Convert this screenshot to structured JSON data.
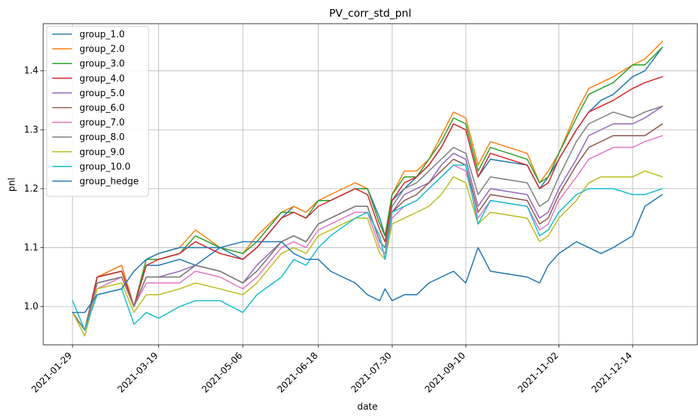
{
  "chart_data": {
    "type": "line",
    "title": "PV_corr_std_pnl",
    "xlabel": "date",
    "ylabel": "pnl",
    "x_tick_labels": [
      "2021-01-29",
      "2021-03-19",
      "2021-05-06",
      "2021-06-18",
      "2021-07-30",
      "2021-09-10",
      "2021-11-02",
      "2021-12-14"
    ],
    "y_tick_labels": [
      "1.0",
      "1.1",
      "1.2",
      "1.3",
      "1.4"
    ],
    "y_ticks": [
      1.0,
      1.1,
      1.2,
      1.3,
      1.4
    ],
    "ylim": [
      0.935,
      1.48
    ],
    "grid": true,
    "legend_position": "top-left",
    "x": [
      "2021-01-29",
      "2021-02-05",
      "2021-02-12",
      "2021-02-26",
      "2021-03-05",
      "2021-03-12",
      "2021-03-19",
      "2021-03-31",
      "2021-04-09",
      "2021-04-23",
      "2021-05-06",
      "2021-05-14",
      "2021-05-28",
      "2021-06-04",
      "2021-06-11",
      "2021-06-18",
      "2021-06-25",
      "2021-07-09",
      "2021-07-16",
      "2021-07-23",
      "2021-07-26",
      "2021-07-30",
      "2021-08-06",
      "2021-08-13",
      "2021-08-20",
      "2021-08-27",
      "2021-09-03",
      "2021-09-10",
      "2021-09-17",
      "2021-09-24",
      "2021-10-15",
      "2021-10-22",
      "2021-10-27",
      "2021-11-02",
      "2021-11-12",
      "2021-11-19",
      "2021-11-26",
      "2021-12-03",
      "2021-12-14",
      "2021-12-21",
      "2021-12-31"
    ],
    "series": [
      {
        "name": "group_1.0",
        "color": "#1f77b4",
        "values": [
          0.99,
          0.96,
          1.05,
          1.07,
          1.0,
          1.07,
          1.07,
          1.08,
          1.07,
          1.1,
          1.08,
          1.1,
          1.15,
          1.17,
          1.16,
          1.18,
          1.18,
          1.2,
          1.2,
          1.15,
          1.12,
          1.18,
          1.2,
          1.22,
          1.24,
          1.27,
          1.31,
          1.3,
          1.22,
          1.25,
          1.24,
          1.2,
          1.22,
          1.25,
          1.3,
          1.33,
          1.35,
          1.36,
          1.39,
          1.4,
          1.44
        ]
      },
      {
        "name": "group_2.0",
        "color": "#ff7f0e",
        "values": [
          0.99,
          0.96,
          1.05,
          1.07,
          1.0,
          1.08,
          1.09,
          1.1,
          1.13,
          1.1,
          1.09,
          1.12,
          1.16,
          1.17,
          1.16,
          1.18,
          1.19,
          1.21,
          1.2,
          1.14,
          1.12,
          1.19,
          1.23,
          1.23,
          1.25,
          1.29,
          1.33,
          1.32,
          1.24,
          1.28,
          1.26,
          1.21,
          1.23,
          1.26,
          1.33,
          1.37,
          1.38,
          1.39,
          1.41,
          1.42,
          1.45
        ]
      },
      {
        "name": "group_3.0",
        "color": "#2ca02c",
        "values": [
          0.99,
          0.96,
          1.05,
          1.06,
          1.0,
          1.08,
          1.08,
          1.09,
          1.12,
          1.1,
          1.09,
          1.11,
          1.16,
          1.16,
          1.15,
          1.18,
          1.18,
          1.2,
          1.2,
          1.14,
          1.12,
          1.19,
          1.22,
          1.22,
          1.25,
          1.28,
          1.32,
          1.31,
          1.23,
          1.27,
          1.25,
          1.21,
          1.22,
          1.26,
          1.32,
          1.36,
          1.37,
          1.38,
          1.41,
          1.41,
          1.44
        ]
      },
      {
        "name": "group_4.0",
        "color": "#d62728",
        "values": [
          0.99,
          0.96,
          1.05,
          1.06,
          1.0,
          1.07,
          1.08,
          1.09,
          1.11,
          1.09,
          1.08,
          1.1,
          1.15,
          1.16,
          1.15,
          1.17,
          1.18,
          1.2,
          1.19,
          1.13,
          1.11,
          1.18,
          1.21,
          1.22,
          1.24,
          1.27,
          1.31,
          1.3,
          1.22,
          1.26,
          1.24,
          1.2,
          1.21,
          1.25,
          1.3,
          1.33,
          1.34,
          1.35,
          1.37,
          1.38,
          1.39
        ]
      },
      {
        "name": "group_5.0",
        "color": "#9467bd",
        "values": [
          0.99,
          0.96,
          1.04,
          1.05,
          1.0,
          1.05,
          1.05,
          1.06,
          1.07,
          1.06,
          1.04,
          1.07,
          1.11,
          1.12,
          1.11,
          1.14,
          1.15,
          1.17,
          1.17,
          1.11,
          1.1,
          1.16,
          1.19,
          1.2,
          1.21,
          1.24,
          1.26,
          1.25,
          1.17,
          1.2,
          1.19,
          1.15,
          1.16,
          1.2,
          1.25,
          1.29,
          1.3,
          1.31,
          1.31,
          1.32,
          1.34
        ]
      },
      {
        "name": "group_6.0",
        "color": "#8c564b",
        "values": [
          0.99,
          0.96,
          1.04,
          1.05,
          1.0,
          1.05,
          1.05,
          1.05,
          1.07,
          1.06,
          1.04,
          1.06,
          1.11,
          1.12,
          1.11,
          1.14,
          1.15,
          1.17,
          1.17,
          1.11,
          1.1,
          1.16,
          1.18,
          1.19,
          1.21,
          1.23,
          1.25,
          1.24,
          1.16,
          1.19,
          1.18,
          1.14,
          1.15,
          1.19,
          1.24,
          1.27,
          1.28,
          1.29,
          1.29,
          1.29,
          1.31
        ]
      },
      {
        "name": "group_7.0",
        "color": "#e377c2",
        "values": [
          0.99,
          0.96,
          1.03,
          1.05,
          1.0,
          1.04,
          1.04,
          1.04,
          1.06,
          1.05,
          1.03,
          1.05,
          1.1,
          1.11,
          1.1,
          1.13,
          1.14,
          1.16,
          1.16,
          1.1,
          1.09,
          1.15,
          1.17,
          1.18,
          1.2,
          1.22,
          1.24,
          1.23,
          1.15,
          1.18,
          1.17,
          1.13,
          1.14,
          1.18,
          1.22,
          1.25,
          1.26,
          1.27,
          1.27,
          1.28,
          1.29
        ]
      },
      {
        "name": "group_8.0",
        "color": "#7f7f7f",
        "values": [
          0.99,
          0.96,
          1.04,
          1.05,
          1.0,
          1.05,
          1.05,
          1.05,
          1.07,
          1.06,
          1.04,
          1.06,
          1.11,
          1.12,
          1.11,
          1.14,
          1.15,
          1.17,
          1.17,
          1.11,
          1.1,
          1.17,
          1.2,
          1.21,
          1.23,
          1.25,
          1.27,
          1.26,
          1.19,
          1.22,
          1.21,
          1.17,
          1.18,
          1.22,
          1.28,
          1.31,
          1.32,
          1.33,
          1.32,
          1.33,
          1.34
        ]
      },
      {
        "name": "group_9.0",
        "color": "#bcbd22",
        "values": [
          0.99,
          0.95,
          1.03,
          1.04,
          0.99,
          1.02,
          1.02,
          1.03,
          1.04,
          1.03,
          1.02,
          1.04,
          1.09,
          1.1,
          1.09,
          1.12,
          1.13,
          1.15,
          1.15,
          1.09,
          1.08,
          1.14,
          1.15,
          1.16,
          1.17,
          1.19,
          1.22,
          1.21,
          1.14,
          1.16,
          1.15,
          1.11,
          1.12,
          1.15,
          1.18,
          1.21,
          1.22,
          1.22,
          1.22,
          1.23,
          1.22
        ]
      },
      {
        "name": "group_10.0",
        "color": "#17becf",
        "values": [
          1.01,
          0.96,
          1.02,
          1.03,
          0.97,
          0.99,
          0.98,
          1.0,
          1.01,
          1.01,
          0.99,
          1.02,
          1.05,
          1.08,
          1.07,
          1.1,
          1.12,
          1.15,
          1.16,
          1.12,
          1.08,
          1.16,
          1.17,
          1.18,
          1.2,
          1.22,
          1.24,
          1.24,
          1.14,
          1.18,
          1.17,
          1.12,
          1.13,
          1.16,
          1.19,
          1.2,
          1.2,
          1.2,
          1.19,
          1.19,
          1.2
        ]
      },
      {
        "name": "group_hedge",
        "color": "#1f77b4",
        "values": [
          0.99,
          0.99,
          1.02,
          1.03,
          1.06,
          1.08,
          1.09,
          1.1,
          1.1,
          1.1,
          1.11,
          1.11,
          1.11,
          1.09,
          1.08,
          1.08,
          1.06,
          1.04,
          1.02,
          1.01,
          1.03,
          1.01,
          1.02,
          1.02,
          1.04,
          1.05,
          1.06,
          1.04,
          1.1,
          1.06,
          1.05,
          1.04,
          1.07,
          1.09,
          1.11,
          1.1,
          1.09,
          1.1,
          1.12,
          1.17,
          1.19
        ]
      }
    ]
  }
}
